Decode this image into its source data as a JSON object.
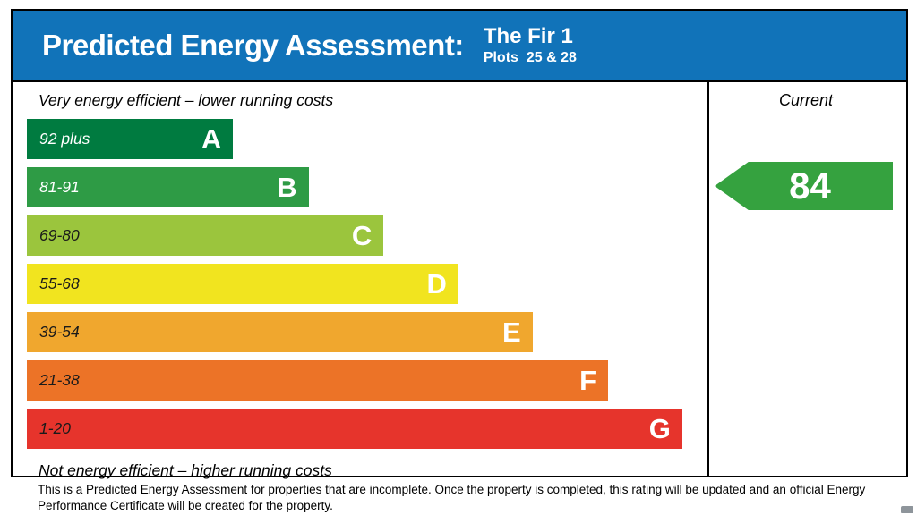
{
  "header": {
    "title": "Predicted Energy Assessment:",
    "property_name": "The Fir 1",
    "plots_label": "Plots  25 & 28",
    "background_color": "#1173b9"
  },
  "chart_data": {
    "type": "bar",
    "title": "Predicted Energy Assessment",
    "top_caption": "Very energy efficient – lower running costs",
    "bottom_caption": "Not energy efficient – higher running costs",
    "column_header": "Current",
    "current": {
      "value": "84",
      "band": "B",
      "arrow_color": "#35a23f"
    },
    "bands": [
      {
        "letter": "A",
        "range": "92 plus",
        "color": "#007b40",
        "width_pct": 30.3,
        "range_text_color": "#ffffff"
      },
      {
        "letter": "B",
        "range": "81-91",
        "color": "#2e9b45",
        "width_pct": 41.4,
        "range_text_color": "#ffffff"
      },
      {
        "letter": "C",
        "range": "69-80",
        "color": "#9bc53d",
        "width_pct": 52.4,
        "range_text_color": "#1a1a1a"
      },
      {
        "letter": "D",
        "range": "55-68",
        "color": "#f1e41f",
        "width_pct": 63.4,
        "range_text_color": "#1a1a1a"
      },
      {
        "letter": "E",
        "range": "39-54",
        "color": "#f0a72e",
        "width_pct": 74.3,
        "range_text_color": "#1a1a1a"
      },
      {
        "letter": "F",
        "range": "21-38",
        "color": "#ec7327",
        "width_pct": 85.4,
        "range_text_color": "#1a1a1a"
      },
      {
        "letter": "G",
        "range": "1-20",
        "color": "#e6342c",
        "width_pct": 96.3,
        "range_text_color": "#1a1a1a"
      }
    ]
  },
  "footer": {
    "text": "This is a Predicted Energy Assessment for properties that are incomplete. Once the property is completed, this rating will be updated and an official Energy Performance Certificate will be created for the property."
  }
}
